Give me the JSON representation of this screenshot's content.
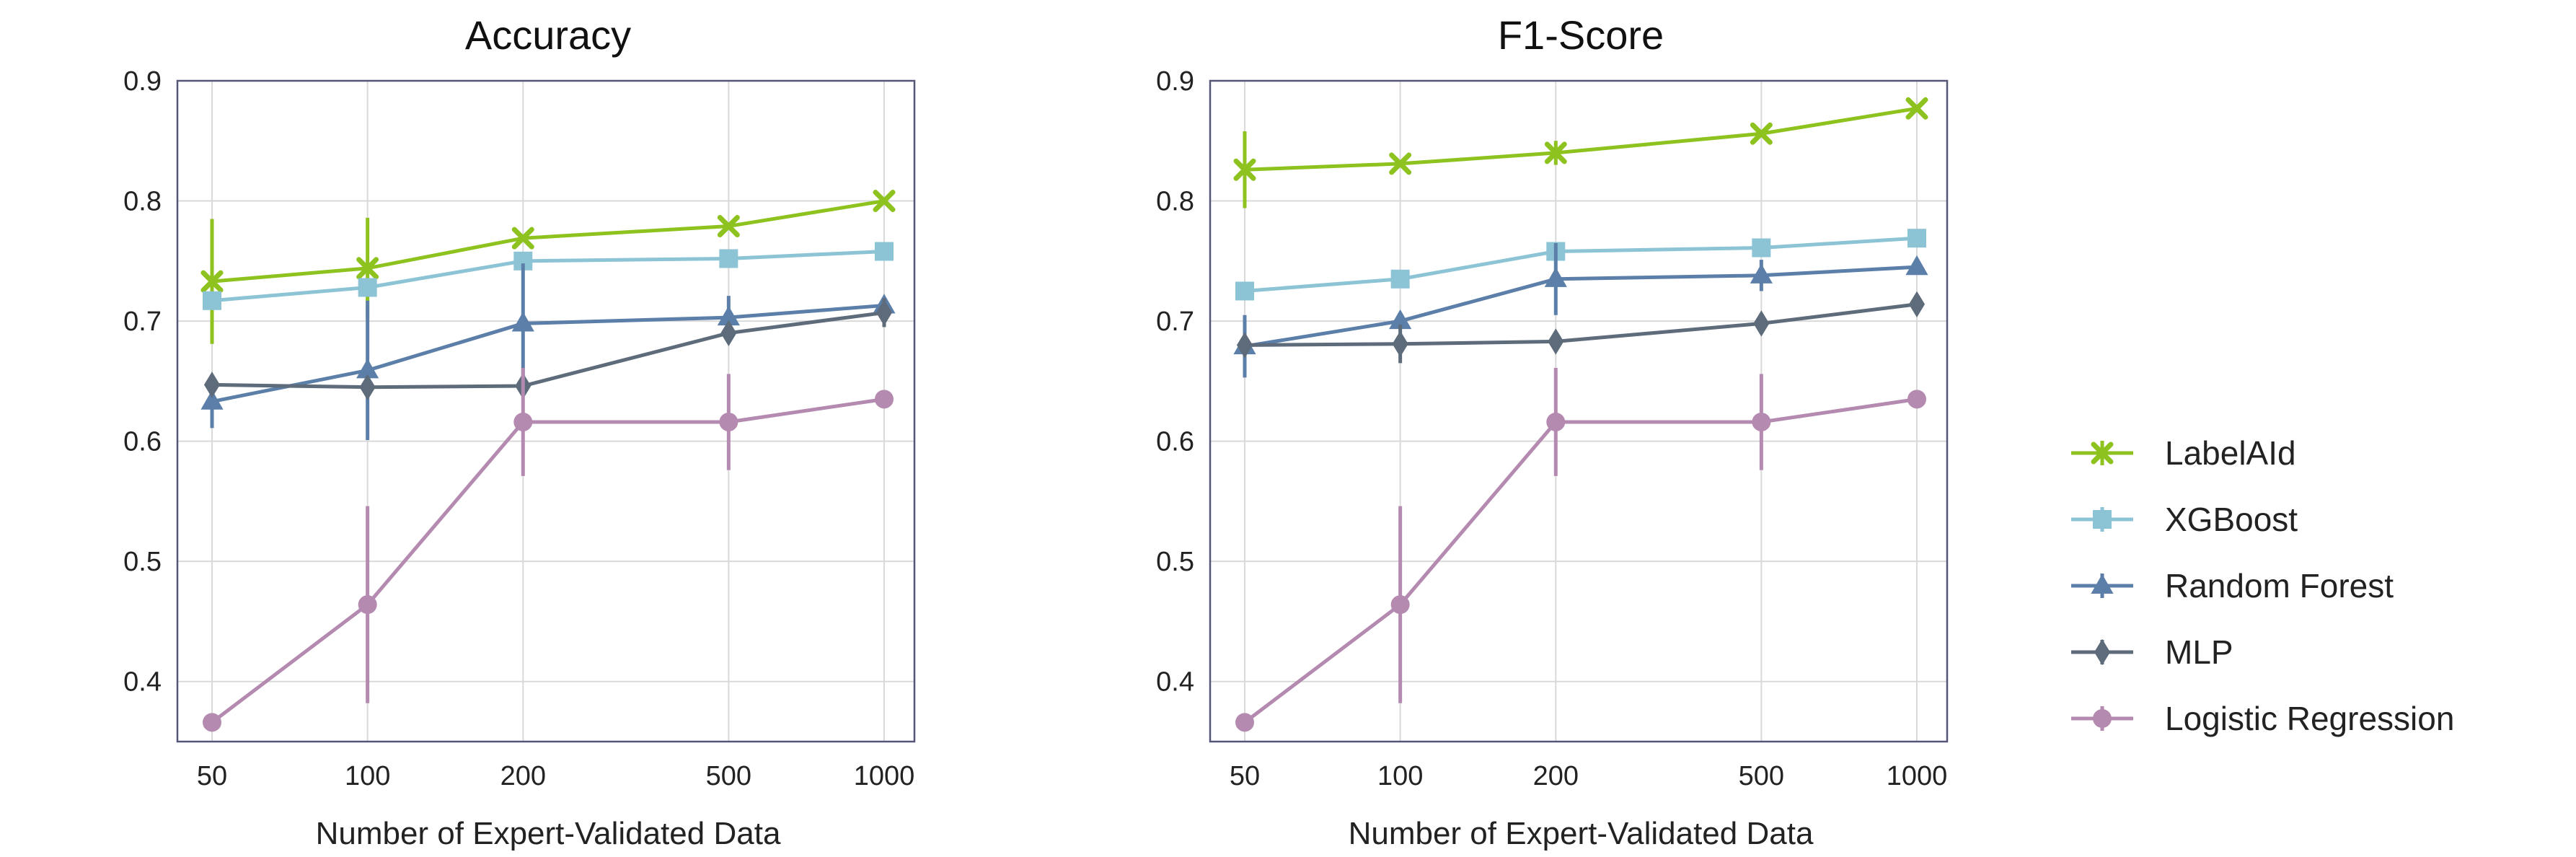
{
  "chart_data": [
    {
      "type": "line",
      "title": "Accuracy",
      "xlabel": "Number of Expert-Validated Data",
      "ylabel": "",
      "x": [
        50,
        100,
        200,
        500,
        1000
      ],
      "xscale": "log",
      "ylim": [
        0.35,
        0.9
      ],
      "yticks": [
        "0.4",
        "0.5",
        "0.6",
        "0.7",
        "0.8",
        "0.9"
      ],
      "xticks": [
        "50",
        "100",
        "200",
        "500",
        "1000"
      ],
      "grid": true,
      "series": [
        {
          "name": "LabelAId",
          "values": [
            0.733,
            0.744,
            0.769,
            0.779,
            0.8
          ],
          "err": [
            0.052,
            0.042,
            0.0,
            0.0,
            0.0
          ],
          "color": "#8ec21f",
          "marker": "x"
        },
        {
          "name": "XGBoost",
          "values": [
            0.717,
            0.728,
            0.75,
            0.752,
            0.758
          ],
          "err": [
            0.0,
            0.0,
            0.0,
            0.0,
            0.0
          ],
          "color": "#8cc4d6",
          "marker": "square"
        },
        {
          "name": "Random Forest",
          "values": [
            0.633,
            0.659,
            0.698,
            0.703,
            0.713
          ],
          "err": [
            0.022,
            0.058,
            0.05,
            0.018,
            0.0
          ],
          "color": "#5b7fa8",
          "marker": "triangle"
        },
        {
          "name": "MLP",
          "values": [
            0.647,
            0.645,
            0.646,
            0.69,
            0.707
          ],
          "err": [
            0.0,
            0.0,
            0.0,
            0.0,
            0.012
          ],
          "color": "#5d6b7a",
          "marker": "diamond"
        },
        {
          "name": "Logistic Regression",
          "values": [
            0.366,
            0.464,
            0.616,
            0.616,
            0.635
          ],
          "err": [
            0.0,
            0.082,
            0.045,
            0.04,
            0.0
          ],
          "color": "#b48ab0",
          "marker": "circle"
        }
      ]
    },
    {
      "type": "line",
      "title": "F1-Score",
      "xlabel": "Number of Expert-Validated Data",
      "ylabel": "",
      "x": [
        50,
        100,
        200,
        500,
        1000
      ],
      "xscale": "log",
      "ylim": [
        0.35,
        0.9
      ],
      "yticks": [
        "0.4",
        "0.5",
        "0.6",
        "0.7",
        "0.8",
        "0.9"
      ],
      "xticks": [
        "50",
        "100",
        "200",
        "500",
        "1000"
      ],
      "grid": true,
      "series": [
        {
          "name": "LabelAId",
          "values": [
            0.826,
            0.831,
            0.84,
            0.856,
            0.877
          ],
          "err": [
            0.032,
            0.0,
            0.01,
            0.0,
            0.0
          ],
          "color": "#8ec21f",
          "marker": "x"
        },
        {
          "name": "XGBoost",
          "values": [
            0.725,
            0.735,
            0.758,
            0.761,
            0.769
          ],
          "err": [
            0.0,
            0.0,
            0.0,
            0.0,
            0.0
          ],
          "color": "#8cc4d6",
          "marker": "square"
        },
        {
          "name": "Random Forest",
          "values": [
            0.679,
            0.7,
            0.735,
            0.738,
            0.745
          ],
          "err": [
            0.026,
            0.0,
            0.03,
            0.013,
            0.0
          ],
          "color": "#5b7fa8",
          "marker": "triangle"
        },
        {
          "name": "MLP",
          "values": [
            0.68,
            0.681,
            0.683,
            0.698,
            0.714
          ],
          "err": [
            0.0,
            0.016,
            0.0,
            0.0,
            0.0
          ],
          "color": "#5d6b7a",
          "marker": "diamond"
        },
        {
          "name": "Logistic Regression",
          "values": [
            0.366,
            0.464,
            0.616,
            0.616,
            0.635
          ],
          "err": [
            0.0,
            0.082,
            0.045,
            0.04,
            0.0
          ],
          "color": "#b48ab0",
          "marker": "circle"
        }
      ]
    }
  ],
  "legend": {
    "placement": "right",
    "items": [
      {
        "label": "LabelAId",
        "color": "#8ec21f",
        "marker": "x"
      },
      {
        "label": "XGBoost",
        "color": "#8cc4d6",
        "marker": "square"
      },
      {
        "label": "Random Forest",
        "color": "#5b7fa8",
        "marker": "triangle"
      },
      {
        "label": "MLP",
        "color": "#5d6b7a",
        "marker": "diamond"
      },
      {
        "label": "Logistic Regression",
        "color": "#b48ab0",
        "marker": "circle"
      }
    ]
  }
}
